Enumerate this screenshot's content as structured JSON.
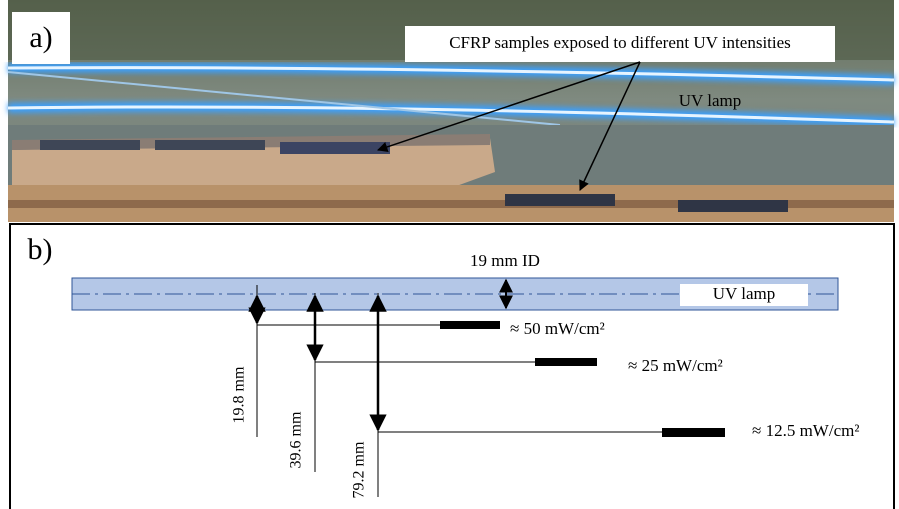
{
  "panel_a": {
    "label": "a)",
    "callout": "CFRP samples exposed to different UV intensities",
    "lamp_label": "UV lamp"
  },
  "panel_b": {
    "label": "b)",
    "lamp_diameter": "19 mm ID",
    "lamp_label": "UV lamp",
    "samples": [
      {
        "distance": "19.8 mm",
        "intensity": "≈ 50 mW/cm²"
      },
      {
        "distance": "39.6 mm",
        "intensity": "≈ 25 mW/cm²"
      },
      {
        "distance": "79.2 mm",
        "intensity": "≈ 12.5 mW/cm²"
      }
    ]
  }
}
